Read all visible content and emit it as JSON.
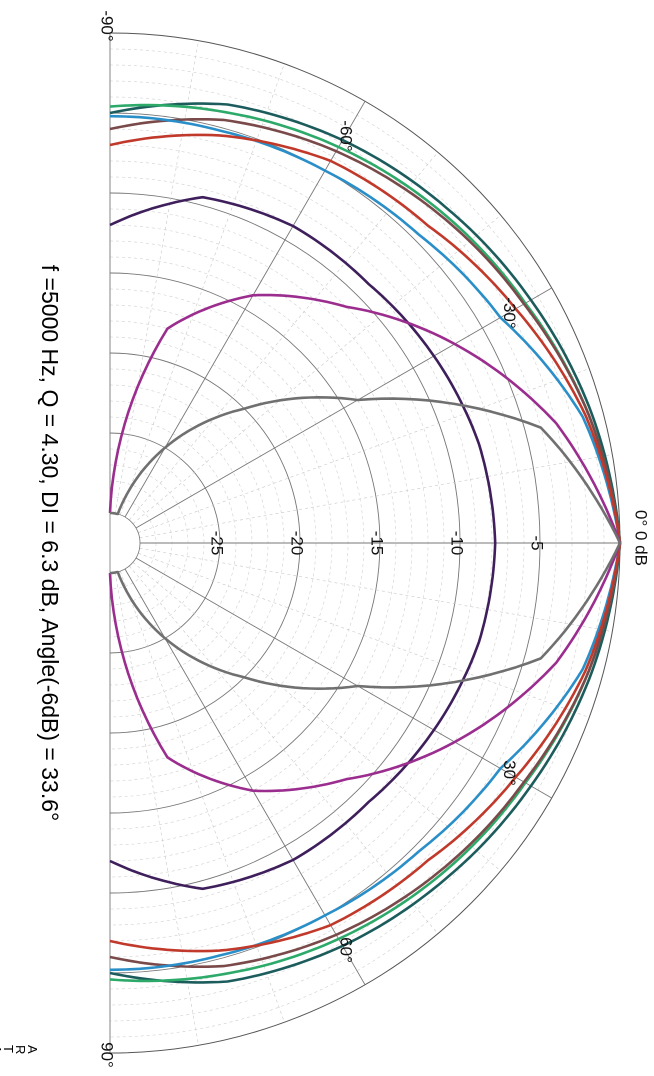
{
  "chart_data": {
    "type": "line",
    "subtype": "polar-directivity-half",
    "caption": "f =5000 Hz,  Q =  4.30,  DI =   6.3 dB, Angle(-6dB) =  33.6°",
    "watermark": "ARTA",
    "angle_unit": "°",
    "angle_range": [
      -90,
      90
    ],
    "angle_ticks": [
      {
        "angle": -90,
        "label": "-90°"
      },
      {
        "angle": -60,
        "label": "-60°"
      },
      {
        "angle": -30,
        "label": "-30°"
      },
      {
        "angle": 0,
        "label": "0° 0 dB"
      },
      {
        "angle": 30,
        "label": "30°"
      },
      {
        "angle": 60,
        "label": "60°"
      },
      {
        "angle": 90,
        "label": "90°"
      }
    ],
    "radial_range_db": [
      -30,
      0
    ],
    "radial_ticks": [
      {
        "db": -5,
        "label": "-5"
      },
      {
        "db": -10,
        "label": "-10"
      },
      {
        "db": -15,
        "label": "-15"
      },
      {
        "db": -20,
        "label": "-20"
      },
      {
        "db": -25,
        "label": "-25"
      }
    ],
    "grid": true,
    "angles": [
      -90,
      -75,
      -60,
      -45,
      -30,
      -15,
      0,
      15,
      30,
      45,
      60,
      75,
      90
    ],
    "series": [
      {
        "color": "#1d5c5c",
        "values": [
          -5.0,
          -3.5,
          -2.8,
          -2.2,
          -1.5,
          -0.7,
          0.0,
          -0.7,
          -1.5,
          -2.2,
          -2.8,
          -3.5,
          -5.0
        ]
      },
      {
        "color": "#2daa6a",
        "values": [
          -4.6,
          -4.0,
          -3.3,
          -2.6,
          -1.9,
          -0.9,
          0.0,
          -0.9,
          -1.9,
          -2.6,
          -3.3,
          -4.0,
          -4.6
        ]
      },
      {
        "color": "#7a4a4a",
        "values": [
          -6.0,
          -4.5,
          -3.6,
          -2.8,
          -2.0,
          -0.9,
          0.0,
          -0.9,
          -2.0,
          -2.8,
          -3.6,
          -4.5,
          -6.0
        ]
      },
      {
        "color": "#2a8fc8",
        "values": [
          -5.2,
          -5.2,
          -5.0,
          -4.6,
          -3.7,
          -1.3,
          0.0,
          -1.3,
          -3.7,
          -4.6,
          -5.0,
          -5.2,
          -5.2
        ]
      },
      {
        "color": "#c0392b",
        "values": [
          -7.0,
          -5.5,
          -4.3,
          -3.8,
          -2.6,
          -1.1,
          0.0,
          -1.1,
          -2.6,
          -3.8,
          -4.3,
          -5.5,
          -7.0
        ]
      },
      {
        "color": "#3e1f5c",
        "values": [
          -12.0,
          -9.5,
          -9.0,
          -9.0,
          -8.5,
          -8.0,
          -7.8,
          -8.0,
          -8.5,
          -9.0,
          -9.0,
          -9.5,
          -12.0
        ]
      },
      {
        "color": "#9b2d8f",
        "values": [
          -30.0,
          -18.0,
          -14.0,
          -11.0,
          -7.0,
          -3.0,
          0.0,
          -3.0,
          -7.0,
          -11.0,
          -14.0,
          -18.0,
          -30.0
        ]
      },
      {
        "color": "#707070",
        "values": [
          -30.0,
          -30.0,
          -25.0,
          -20.0,
          -14.0,
          -4.0,
          0.0,
          -4.0,
          -14.0,
          -20.0,
          -25.0,
          -30.0,
          -30.0
        ]
      }
    ]
  }
}
